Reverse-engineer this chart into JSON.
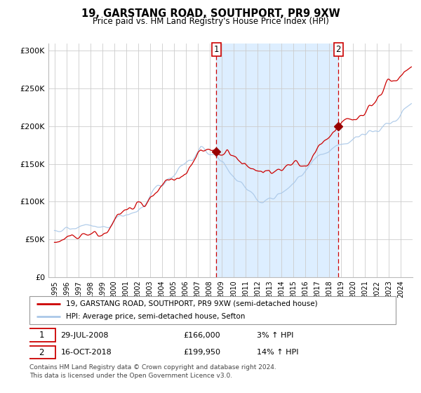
{
  "title": "19, GARSTANG ROAD, SOUTHPORT, PR9 9XW",
  "subtitle": "Price paid vs. HM Land Registry's House Price Index (HPI)",
  "background_color": "#ffffff",
  "grid_color": "#cccccc",
  "sale1_date_num": 2008.57,
  "sale1_price": 166000,
  "sale2_date_num": 2018.79,
  "sale2_price": 199950,
  "ylim": [
    0,
    310000
  ],
  "xlim_start": 1994.5,
  "xlim_end": 2025.0,
  "red_line_color": "#cc0000",
  "blue_line_color": "#aac8e8",
  "shade_color": "#ddeeff",
  "dashed_color": "#cc0000",
  "marker_color": "#990000",
  "annotation_box_edge": "#cc0000",
  "legend_label1": "19, GARSTANG ROAD, SOUTHPORT, PR9 9XW (semi-detached house)",
  "legend_label2": "HPI: Average price, semi-detached house, Sefton",
  "table_row1": [
    "1",
    "29-JUL-2008",
    "£166,000",
    "3% ↑ HPI"
  ],
  "table_row2": [
    "2",
    "16-OCT-2018",
    "£199,950",
    "14% ↑ HPI"
  ],
  "footer": "Contains HM Land Registry data © Crown copyright and database right 2024.\nThis data is licensed under the Open Government Licence v3.0.",
  "yticks": [
    0,
    50000,
    100000,
    150000,
    200000,
    250000,
    300000
  ],
  "ytick_labels": [
    "£0",
    "£50K",
    "£100K",
    "£150K",
    "£200K",
    "£250K",
    "£300K"
  ],
  "xticks": [
    1995,
    1996,
    1997,
    1998,
    1999,
    2000,
    2001,
    2002,
    2003,
    2004,
    2005,
    2006,
    2007,
    2008,
    2009,
    2010,
    2011,
    2012,
    2013,
    2014,
    2015,
    2016,
    2017,
    2018,
    2019,
    2020,
    2021,
    2022,
    2023,
    2024
  ]
}
